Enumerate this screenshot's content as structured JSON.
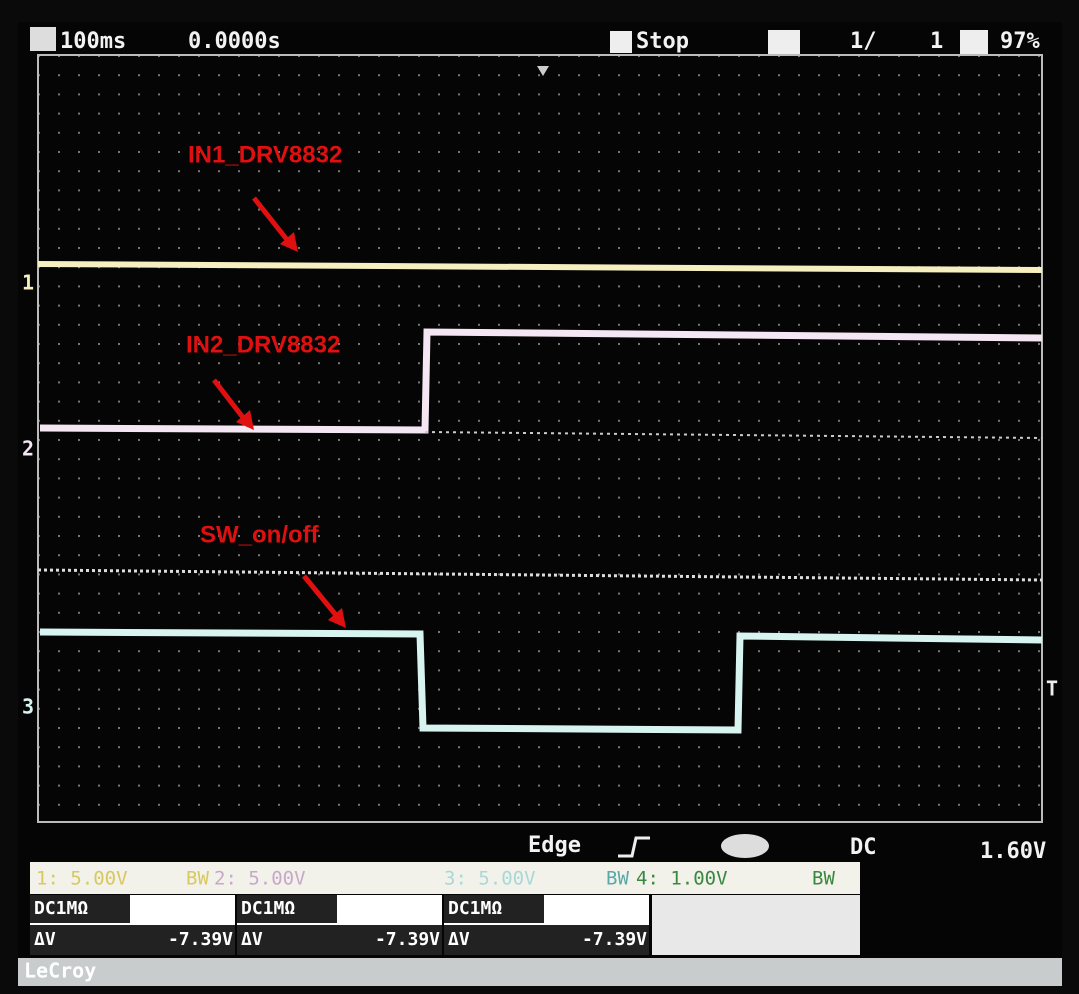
{
  "header": {
    "timebase": "100ms",
    "delay": "0.0000s",
    "state": "Stop",
    "acq_count": "1/",
    "acq_total": "1",
    "memory": "97%"
  },
  "annotations": {
    "in1": "IN1_DRV8832",
    "in2": "IN2_DRV8832",
    "sw": "SW_on/off"
  },
  "markers": {
    "ch1": "1",
    "ch2": "2",
    "ch3": "3",
    "trigger": "T"
  },
  "trigger": {
    "mode": "Edge",
    "coupling": "DC",
    "level": "1.60V"
  },
  "channels": [
    {
      "label": "1: 5.00V",
      "bw": "BW"
    },
    {
      "label": "2: 5.00V"
    },
    {
      "label": "3: 5.00V",
      "bw": "BW"
    },
    {
      "label": "4: 1.00V",
      "bw": "BW"
    }
  ],
  "measurements": [
    {
      "coupling": "DC1MΩ",
      "name": "ΔV",
      "value": "-7.39V"
    },
    {
      "coupling": "DC1MΩ",
      "name": "ΔV",
      "value": "-7.39V"
    },
    {
      "coupling": "DC1MΩ",
      "name": "ΔV",
      "value": "-7.39V"
    }
  ],
  "footer": {
    "brand": "LeCroy"
  }
}
